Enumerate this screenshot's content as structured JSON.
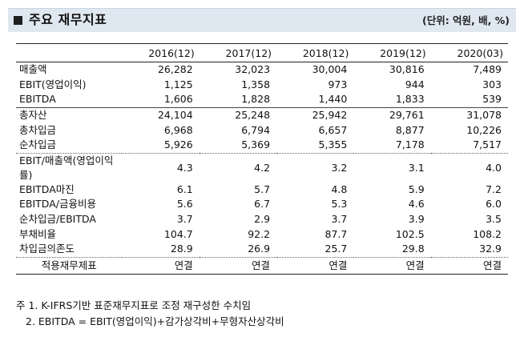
{
  "header": {
    "title": "주요 재무지표",
    "unit": "(단위: 억원, 배, %)"
  },
  "table": {
    "columns": [
      "2016(12)",
      "2017(12)",
      "2018(12)",
      "2019(12)",
      "2020(03)"
    ],
    "rows": [
      {
        "label": "매출액",
        "values": [
          "26,282",
          "32,023",
          "30,004",
          "30,816",
          "7,489"
        ]
      },
      {
        "label": "EBIT(영업이익)",
        "values": [
          "1,125",
          "1,358",
          "973",
          "944",
          "303"
        ]
      },
      {
        "label": "EBITDA",
        "values": [
          "1,606",
          "1,828",
          "1,440",
          "1,833",
          "539"
        ]
      },
      {
        "label": "총자산",
        "values": [
          "24,104",
          "25,248",
          "25,942",
          "29,761",
          "31,078"
        ]
      },
      {
        "label": "총차입금",
        "values": [
          "6,968",
          "6,794",
          "6,657",
          "8,877",
          "10,226"
        ]
      },
      {
        "label": "순차입금",
        "values": [
          "5,926",
          "5,369",
          "5,355",
          "7,178",
          "7,517"
        ]
      },
      {
        "label": "EBIT/매출액(영업이익률)",
        "values": [
          "4.3",
          "4.2",
          "3.2",
          "3.1",
          "4.0"
        ]
      },
      {
        "label": "EBITDA마진",
        "values": [
          "6.1",
          "5.7",
          "4.8",
          "5.9",
          "7.2"
        ]
      },
      {
        "label": "EBITDA/금융비용",
        "values": [
          "5.6",
          "6.7",
          "5.3",
          "4.6",
          "6.0"
        ]
      },
      {
        "label": "순차입금/EBITDA",
        "values": [
          "3.7",
          "2.9",
          "3.7",
          "3.9",
          "3.5"
        ]
      },
      {
        "label": "부채비율",
        "values": [
          "104.7",
          "92.2",
          "87.7",
          "102.5",
          "108.2"
        ]
      },
      {
        "label": "차입금의존도",
        "values": [
          "28.9",
          "26.9",
          "25.7",
          "29.8",
          "32.9"
        ]
      },
      {
        "label": "적용재무제표",
        "values": [
          "연결",
          "연결",
          "연결",
          "연결",
          "연결"
        ]
      }
    ]
  },
  "notes": {
    "note1": "주 1. K-IFRS기반 표준재무지표로 조정 재구성한 수치임",
    "note2": "2. EBITDA = EBIT(영업이익)+감가상각비+무형자산상각비"
  }
}
